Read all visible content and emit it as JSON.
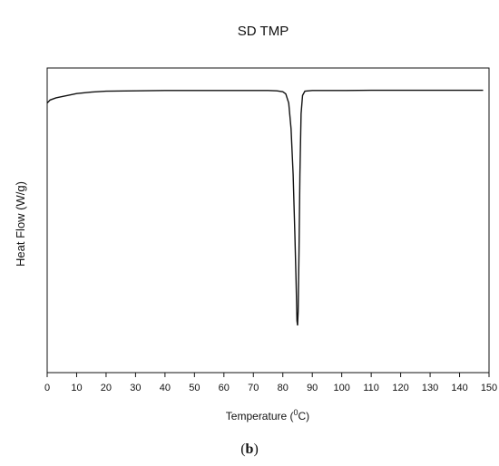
{
  "chart_data": {
    "type": "line",
    "title": "SD TMP",
    "ylabel": "Heat Flow (W/g)",
    "xlabel_prefix": "Temperature (",
    "xlabel_sup": "0",
    "xlabel_suffix": "C)",
    "xlim": [
      0,
      150
    ],
    "ylim": [
      0,
      1
    ],
    "y_ticks_labeled": false,
    "x_ticks": [
      0,
      10,
      20,
      30,
      40,
      50,
      60,
      70,
      80,
      90,
      100,
      110,
      120,
      130,
      140,
      150
    ],
    "x_tick_labels": [
      "0",
      "10",
      "20",
      "30",
      "40",
      "50",
      "60",
      "70",
      "80",
      "90",
      "100",
      "110",
      "120",
      "130",
      "140",
      "150"
    ],
    "series": [
      {
        "line_color": "#111111",
        "points": [
          [
            0,
            0.885
          ],
          [
            1,
            0.895
          ],
          [
            3,
            0.902
          ],
          [
            5,
            0.906
          ],
          [
            8,
            0.912
          ],
          [
            10,
            0.916
          ],
          [
            15,
            0.921
          ],
          [
            20,
            0.924
          ],
          [
            30,
            0.925
          ],
          [
            40,
            0.926
          ],
          [
            50,
            0.926
          ],
          [
            60,
            0.926
          ],
          [
            70,
            0.926
          ],
          [
            75,
            0.926
          ],
          [
            78,
            0.925
          ],
          [
            80,
            0.922
          ],
          [
            81,
            0.915
          ],
          [
            82,
            0.885
          ],
          [
            82.8,
            0.8
          ],
          [
            83.5,
            0.65
          ],
          [
            84.1,
            0.45
          ],
          [
            84.5,
            0.3
          ],
          [
            84.8,
            0.17
          ],
          [
            85.0,
            0.155
          ],
          [
            85.2,
            0.2
          ],
          [
            85.5,
            0.4
          ],
          [
            85.8,
            0.65
          ],
          [
            86.2,
            0.85
          ],
          [
            86.7,
            0.91
          ],
          [
            87.5,
            0.924
          ],
          [
            90,
            0.926
          ],
          [
            100,
            0.926
          ],
          [
            110,
            0.927
          ],
          [
            120,
            0.927
          ],
          [
            130,
            0.927
          ],
          [
            140,
            0.927
          ],
          [
            148,
            0.927
          ]
        ]
      }
    ]
  },
  "caption": {
    "open": "(",
    "letter": "b",
    "close": ")"
  }
}
